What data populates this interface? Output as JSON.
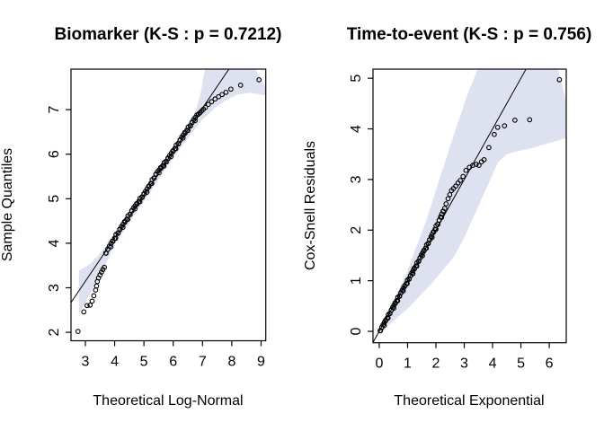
{
  "figure": {
    "background": "#ffffff"
  },
  "colors": {
    "band": "#dee1ef",
    "point_stroke": "#000000",
    "reference_line": "#000000",
    "frame": "#000000",
    "text": "#000000"
  },
  "chart_data": [
    {
      "type": "scatter",
      "variant": "qq-plot",
      "title": "Biomarker (K-S : p = 0.7212)",
      "xlabel": "Theoretical Log-Normal",
      "ylabel": "Sample Quantiles",
      "xlim": [
        2.51,
        9.16
      ],
      "ylim": [
        1.81,
        7.91
      ],
      "x_ticks": [
        3,
        4,
        5,
        6,
        7,
        8,
        9
      ],
      "y_ticks": [
        2,
        3,
        4,
        5,
        6,
        7
      ],
      "grid": false,
      "legend": false,
      "ref_line": [
        [
          2.51,
          2.67
        ],
        [
          7.9,
          7.91
        ]
      ],
      "band": [
        [
          2.78,
          2.4
        ],
        [
          2.85,
          2.5
        ],
        [
          2.95,
          2.6
        ],
        [
          3.1,
          2.8
        ],
        [
          3.3,
          3.05
        ],
        [
          3.6,
          3.38
        ],
        [
          4.0,
          3.97
        ],
        [
          4.5,
          4.46
        ],
        [
          5.0,
          4.94
        ],
        [
          5.5,
          5.43
        ],
        [
          6.0,
          5.91
        ],
        [
          6.5,
          6.36
        ],
        [
          7.0,
          6.78
        ],
        [
          7.4,
          7.02
        ],
        [
          7.8,
          7.22
        ],
        [
          8.2,
          7.34
        ],
        [
          8.6,
          7.38
        ],
        [
          9.16,
          7.32
        ],
        [
          9.16,
          7.5
        ],
        [
          8.79,
          7.91
        ],
        [
          7.08,
          7.91
        ],
        [
          6.95,
          7.4
        ],
        [
          6.75,
          6.95
        ],
        [
          6.4,
          6.6
        ],
        [
          6.0,
          6.18
        ],
        [
          5.5,
          5.7
        ],
        [
          5.0,
          5.21
        ],
        [
          4.5,
          4.72
        ],
        [
          4.0,
          4.24
        ],
        [
          3.6,
          3.85
        ],
        [
          3.2,
          3.55
        ],
        [
          2.78,
          3.38
        ]
      ],
      "points": [
        [
          2.75,
          2.02
        ],
        [
          2.95,
          2.46
        ],
        [
          3.06,
          2.6
        ],
        [
          3.16,
          2.61
        ],
        [
          3.23,
          2.7
        ],
        [
          3.29,
          2.82
        ],
        [
          3.35,
          2.95
        ],
        [
          3.38,
          3.04
        ],
        [
          3.41,
          3.14
        ],
        [
          3.45,
          3.22
        ],
        [
          3.5,
          3.29
        ],
        [
          3.55,
          3.35
        ],
        [
          3.6,
          3.41
        ],
        [
          3.65,
          3.46
        ],
        [
          6.86,
          6.9
        ],
        [
          6.91,
          6.93
        ],
        [
          6.97,
          6.97
        ],
        [
          7.03,
          7.01
        ],
        [
          7.1,
          7.05
        ],
        [
          7.2,
          7.12
        ],
        [
          7.31,
          7.18
        ],
        [
          7.43,
          7.24
        ],
        [
          7.55,
          7.29
        ],
        [
          7.67,
          7.34
        ],
        [
          7.8,
          7.39
        ],
        [
          7.97,
          7.46
        ],
        [
          8.3,
          7.55
        ],
        [
          8.93,
          7.67
        ]
      ],
      "dense_run": {
        "from": [
          3.68,
          3.81
        ],
        "to": [
          6.8,
          6.84
        ],
        "n": 92,
        "wiggle": [
          [
            0,
            -0.05
          ],
          [
            0.12,
            0.0
          ],
          [
            0.3,
            0.03
          ],
          [
            0.45,
            0.0
          ],
          [
            0.55,
            0.05
          ],
          [
            0.7,
            0.0
          ],
          [
            0.85,
            0.02
          ],
          [
            1,
            0.01
          ]
        ],
        "jitter": [
          0.018,
          -0.022,
          0.03,
          -0.012,
          0.024,
          -0.03,
          0.006,
          0.028,
          -0.018,
          0.012,
          -0.026,
          0.02
        ]
      }
    },
    {
      "type": "scatter",
      "variant": "qq-plot",
      "title": "Time-to-event (K-S : p = 0.756)",
      "xlabel": "Theoretical Exponential",
      "ylabel": "Cox-Snell Residuals",
      "xlim": [
        -0.22,
        6.6
      ],
      "ylim": [
        -0.225,
        5.18
      ],
      "x_ticks": [
        0,
        1,
        2,
        3,
        4,
        5,
        6
      ],
      "y_ticks": [
        0,
        1,
        2,
        3,
        4,
        5
      ],
      "grid": false,
      "legend": false,
      "ref_line": [
        [
          -0.22,
          -0.22
        ],
        [
          5.17,
          5.17
        ]
      ],
      "band": [
        [
          0.03,
          -0.07
        ],
        [
          0.3,
          0.1
        ],
        [
          0.6,
          0.25
        ],
        [
          1.0,
          0.45
        ],
        [
          1.4,
          0.68
        ],
        [
          1.8,
          0.92
        ],
        [
          2.2,
          1.18
        ],
        [
          2.64,
          1.48
        ],
        [
          3.0,
          1.85
        ],
        [
          3.4,
          2.35
        ],
        [
          3.8,
          2.85
        ],
        [
          4.2,
          3.35
        ],
        [
          4.5,
          3.5
        ],
        [
          4.9,
          3.56
        ],
        [
          5.4,
          3.62
        ],
        [
          6.0,
          3.72
        ],
        [
          6.59,
          3.82
        ],
        [
          6.59,
          4.55
        ],
        [
          6.31,
          5.18
        ],
        [
          3.48,
          5.18
        ],
        [
          3.1,
          4.66
        ],
        [
          2.64,
          3.9
        ],
        [
          2.12,
          3.0
        ],
        [
          1.65,
          2.17
        ],
        [
          1.28,
          1.63
        ],
        [
          0.9,
          1.06
        ],
        [
          0.5,
          0.62
        ],
        [
          0.03,
          0.07
        ]
      ],
      "points": [
        [
          2.36,
          2.52
        ],
        [
          2.43,
          2.62
        ],
        [
          2.49,
          2.7
        ],
        [
          2.55,
          2.78
        ],
        [
          2.62,
          2.82
        ],
        [
          2.7,
          2.87
        ],
        [
          2.78,
          2.93
        ],
        [
          2.86,
          2.98
        ],
        [
          2.96,
          3.06
        ],
        [
          3.06,
          3.18
        ],
        [
          3.18,
          3.24
        ],
        [
          3.3,
          3.28
        ],
        [
          3.42,
          3.3
        ],
        [
          3.52,
          3.28
        ],
        [
          3.61,
          3.35
        ],
        [
          3.7,
          3.39
        ],
        [
          3.87,
          3.63
        ],
        [
          4.06,
          3.89
        ],
        [
          4.18,
          4.03
        ],
        [
          4.42,
          4.06
        ],
        [
          4.79,
          4.17
        ],
        [
          5.31,
          4.18
        ],
        [
          6.36,
          4.97
        ]
      ],
      "dense_run": {
        "from": [
          0.02,
          0.0
        ],
        "to": [
          2.3,
          2.3
        ],
        "n": 82,
        "wiggle": [
          [
            0,
            0.0
          ],
          [
            0.5,
            0.0
          ],
          [
            0.75,
            0.02
          ],
          [
            0.9,
            0.06
          ],
          [
            1,
            0.12
          ]
        ],
        "jitter": [
          0.015,
          -0.018,
          0.025,
          -0.01,
          0.02,
          -0.025,
          0.005,
          0.023,
          -0.015,
          0.01,
          -0.022,
          0.017
        ]
      }
    }
  ]
}
